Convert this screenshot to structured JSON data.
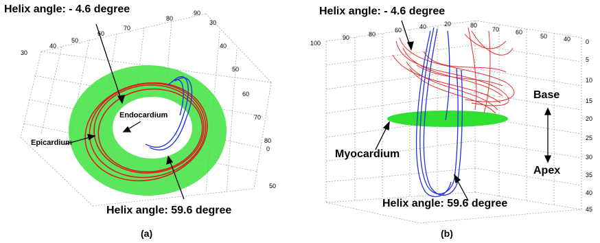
{
  "panel_a": {
    "caption": "(a)",
    "annotations": {
      "top_helix": "Helix angle: - 4.6 degree",
      "bottom_helix": "Helix angle: 59.6 degree",
      "endocardium": "Endocardium",
      "epicardium": "Epicardium"
    },
    "ticks_top_left": [
      "30",
      "40",
      "50",
      "60",
      "70",
      "80",
      "90"
    ],
    "ticks_top_right": [
      "30",
      "40",
      "50",
      "60",
      "70",
      "80",
      "0",
      "50"
    ],
    "colors": {
      "myocardium": "#22dd22",
      "fibers_red": "#e02020",
      "fibers_blue": "#2030e0"
    }
  },
  "panel_b": {
    "caption": "(b)",
    "annotations": {
      "top_helix": "Helix angle: - 4.6 degree",
      "bottom_helix": "Helix angle: 59.6 degree",
      "myocardium": "Myocardium",
      "base": "Base",
      "apex": "Apex"
    },
    "ticks_top": [
      "100",
      "90",
      "80",
      "60",
      "40",
      "20",
      "80",
      "70",
      "60",
      "50",
      "40"
    ],
    "ticks_right": [
      "0",
      "5",
      "10",
      "15",
      "20",
      "25",
      "30",
      "35",
      "40",
      "45"
    ],
    "colors": {
      "myocardium": "#22dd22",
      "fibers_red": "#e02020",
      "fibers_blue": "#2030e0"
    }
  }
}
